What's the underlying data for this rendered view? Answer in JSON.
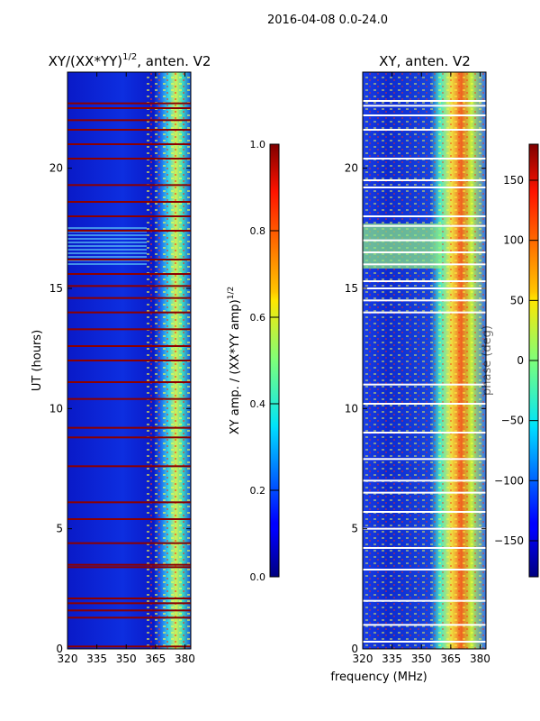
{
  "suptitle": "2016-04-08 0.0-24.0",
  "colors": {
    "heat_bg": "#0a14c8",
    "flag_red": "#8b0000",
    "flag_white": "#ffffff"
  },
  "chart_data": [
    {
      "type": "heatmap",
      "title_main": "XY/(XX*YY)",
      "title_sup": "1/2",
      "title_tail": ", anten. V2",
      "ylabel": "UT (hours)",
      "xlabel": "",
      "xlim": [
        320,
        383
      ],
      "ylim": [
        0,
        24
      ],
      "x_ticks": [
        320,
        335,
        350,
        365,
        380
      ],
      "y_ticks": [
        0,
        5,
        10,
        15,
        20
      ],
      "flag_hours": [
        0.1,
        1.3,
        1.6,
        1.9,
        2.1,
        3.4,
        3.5,
        4.4,
        5.4,
        6.1,
        7.6,
        8.8,
        9.2,
        10.4,
        11.1,
        12.0,
        12.6,
        13.3,
        14.0,
        14.6,
        15.1,
        15.6,
        16.2,
        17.4,
        18.0,
        18.6,
        19.3,
        20.4,
        21.0,
        21.6,
        22.0,
        22.5,
        22.7
      ],
      "colorbar": {
        "label_main": "XY amp. / (XX*YY amp)",
        "label_sup": "1/2",
        "vmin": 0.0,
        "vmax": 1.0,
        "ticks": [
          "0.0",
          "0.2",
          "0.4",
          "0.6",
          "0.8",
          "1.0"
        ]
      }
    },
    {
      "type": "heatmap",
      "title": "XY, anten. V2",
      "xlabel": "frequency (MHz)",
      "xlim": [
        320,
        383
      ],
      "ylim": [
        0,
        24
      ],
      "x_ticks": [
        320,
        335,
        350,
        365,
        380
      ],
      "y_ticks": [
        0,
        5,
        10,
        15,
        20
      ],
      "flag_hours": [
        0.3,
        1.0,
        2.0,
        3.3,
        4.2,
        5.0,
        5.7,
        6.5,
        7.0,
        7.9,
        9.0,
        10.2,
        11.0,
        14.0,
        14.5,
        15.0,
        15.3,
        16.0,
        16.5,
        17.0,
        17.6,
        18.0,
        19.2,
        19.5,
        20.4,
        21.6,
        22.2,
        22.6,
        22.8
      ],
      "colorbar": {
        "label": "phase (deg)",
        "vmin": -180,
        "vmax": 180,
        "ticks": [
          "150",
          "100",
          "50",
          "0",
          "−50",
          "−100",
          "−150"
        ],
        "tick_values": [
          150,
          100,
          50,
          0,
          -50,
          -100,
          -150
        ]
      }
    }
  ]
}
